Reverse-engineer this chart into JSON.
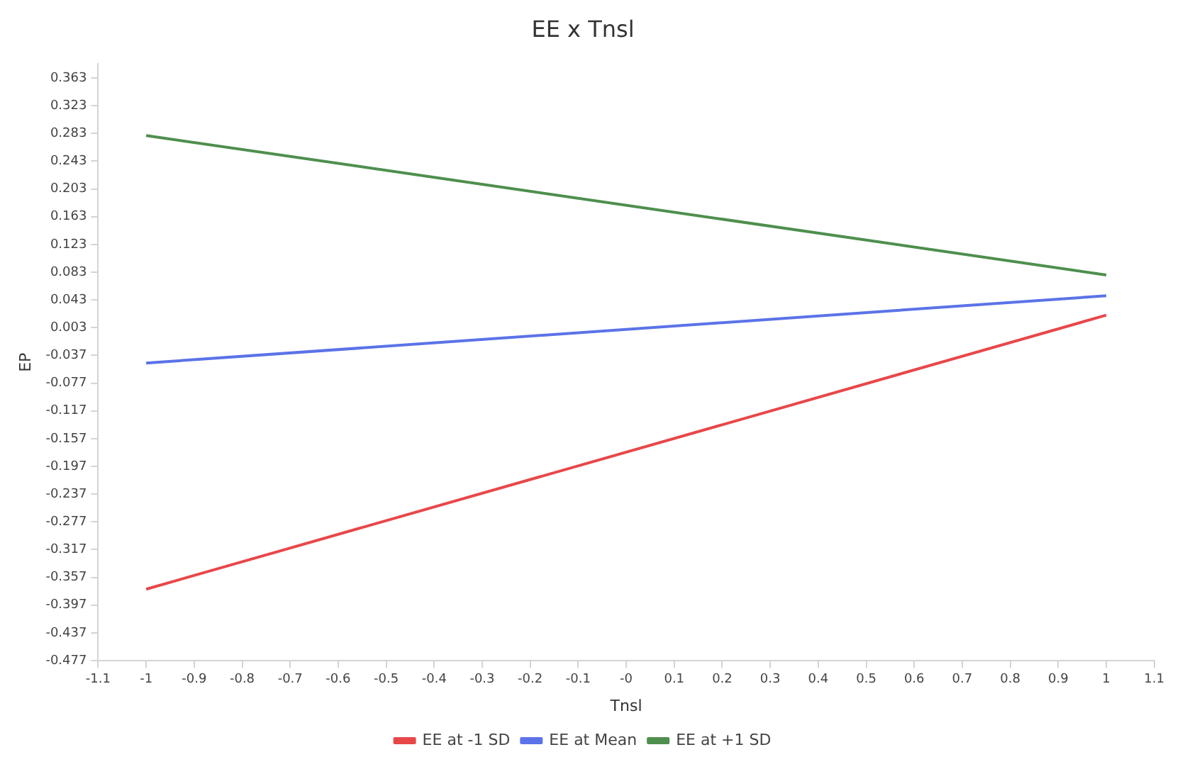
{
  "chart_data": {
    "type": "line",
    "title": "EE x Tnsl",
    "xlabel": "Tnsl",
    "ylabel": "EP",
    "x": [
      -1,
      1
    ],
    "series": [
      {
        "name": "EE at -1 SD",
        "color": "#e8474a",
        "values": [
          -0.374,
          0.021
        ]
      },
      {
        "name": "EE at Mean",
        "color": "#5b73e8",
        "values": [
          -0.048,
          0.049
        ]
      },
      {
        "name": "EE at +1 SD",
        "color": "#4e8f4e",
        "values": [
          0.28,
          0.079
        ]
      }
    ],
    "xlim": [
      -1.1,
      1.1
    ],
    "xticks": [
      -1.1,
      -1,
      -0.9,
      -0.8,
      -0.7,
      -0.6,
      -0.5,
      -0.4,
      -0.3,
      -0.2,
      -0.1,
      {
        "value": 0,
        "label": "-0"
      },
      0.1,
      0.2,
      0.3,
      0.4,
      0.5,
      0.6,
      0.7,
      0.8,
      0.9,
      1,
      1.1
    ],
    "ylim": [
      -0.477,
      0.383
    ],
    "yticks": [
      -0.477,
      -0.437,
      -0.397,
      -0.357,
      -0.317,
      -0.277,
      -0.237,
      -0.197,
      -0.157,
      -0.117,
      -0.077,
      -0.037,
      0.003,
      0.043,
      0.083,
      0.123,
      0.163,
      0.203,
      0.243,
      0.283,
      0.323,
      0.363
    ],
    "grid": false,
    "legend": "bottom",
    "marker": "none",
    "line_style": "solid"
  }
}
